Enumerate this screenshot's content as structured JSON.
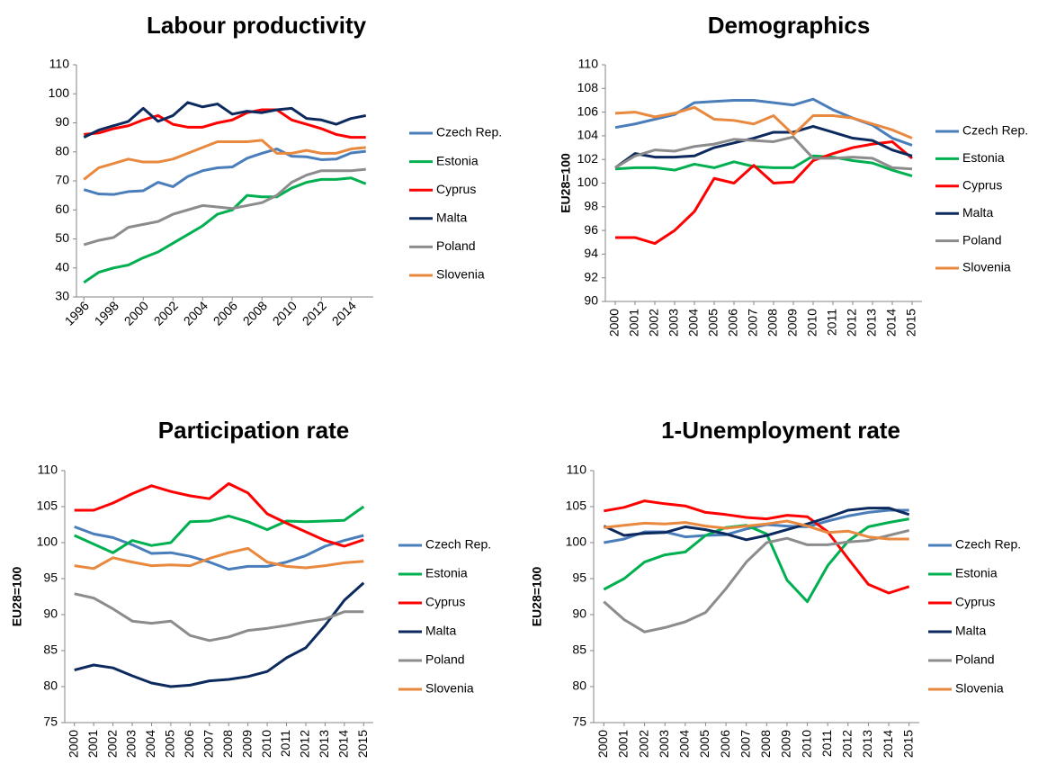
{
  "chart_data": [
    {
      "type": "line",
      "title": "Labour productivity",
      "x": [
        1996,
        1997,
        1998,
        1999,
        2000,
        2001,
        2002,
        2003,
        2004,
        2005,
        2006,
        2007,
        2008,
        2009,
        2010,
        2011,
        2012,
        2013,
        2014,
        2015
      ],
      "xlim": [
        1995.5,
        2015.5
      ],
      "xticks": [
        1996,
        1998,
        2000,
        2002,
        2004,
        2006,
        2008,
        2010,
        2012,
        2014
      ],
      "ylim": [
        30,
        110
      ],
      "yticks": [
        30,
        40,
        50,
        60,
        70,
        80,
        90,
        100,
        110
      ],
      "legend": "right",
      "series": [
        {
          "name": "Czech Rep.",
          "color": "#4a7ebb",
          "values": [
            67,
            65.5,
            65.3,
            66.3,
            66.6,
            69.5,
            68,
            71.5,
            73.5,
            74.5,
            74.8,
            77.8,
            79.5,
            81,
            78.5,
            78.3,
            77.3,
            77.5,
            79.6,
            80.2
          ]
        },
        {
          "name": "Estonia",
          "color": "#00b050",
          "values": [
            35,
            38.5,
            40,
            41,
            43.5,
            45.5,
            48.5,
            51.5,
            54.5,
            58.5,
            60,
            65,
            64.5,
            64.5,
            67.5,
            69.5,
            70.5,
            70.5,
            71,
            69
          ]
        },
        {
          "name": "Cyprus",
          "color": "#ff0000",
          "values": [
            86,
            86.5,
            88,
            89,
            91,
            92.5,
            89.5,
            88.5,
            88.5,
            90,
            91,
            93.5,
            94.5,
            94.5,
            91,
            89.5,
            88,
            86,
            85,
            85
          ]
        },
        {
          "name": "Malta",
          "color": "#0d2a5e",
          "values": [
            85,
            87.5,
            89,
            90.5,
            95,
            90.5,
            92.5,
            97,
            95.5,
            96.5,
            93,
            94,
            93.5,
            94.5,
            95,
            91.5,
            91,
            89.5,
            91.5,
            92.5
          ]
        },
        {
          "name": "Poland",
          "color": "#8c8c8c",
          "values": [
            48,
            49.5,
            50.5,
            54,
            55,
            56,
            58.5,
            60,
            61.5,
            61,
            60.5,
            61.5,
            62.5,
            65,
            69.5,
            72,
            73.5,
            73.5,
            73.5,
            74
          ]
        },
        {
          "name": "Slovenia",
          "color": "#e8893f",
          "values": [
            70.5,
            74.5,
            76,
            77.5,
            76.5,
            76.5,
            77.5,
            79.5,
            81.5,
            83.5,
            83.5,
            83.5,
            84,
            79.5,
            79.5,
            80.5,
            79.5,
            79.5,
            81,
            81.5
          ]
        }
      ]
    },
    {
      "type": "line",
      "title": "Demographics",
      "y_label": "EU28=100",
      "x": [
        2000,
        2001,
        2002,
        2003,
        2004,
        2005,
        2006,
        2007,
        2008,
        2009,
        2010,
        2011,
        2012,
        2013,
        2014,
        2015
      ],
      "xlim": [
        1999.5,
        2015.5
      ],
      "xticks": [
        2000,
        2001,
        2002,
        2003,
        2004,
        2005,
        2006,
        2007,
        2008,
        2009,
        2010,
        2011,
        2012,
        2013,
        2014,
        2015
      ],
      "ylim": [
        90,
        110
      ],
      "yticks": [
        90,
        92,
        94,
        96,
        98,
        100,
        102,
        104,
        106,
        108,
        110
      ],
      "legend": "right",
      "series": [
        {
          "name": "Czech Rep.",
          "color": "#4a7ebb",
          "values": [
            104.7,
            105,
            105.4,
            105.8,
            106.8,
            106.9,
            107,
            107,
            106.8,
            106.6,
            107.1,
            106.2,
            105.5,
            104.9,
            103.8,
            103.2
          ]
        },
        {
          "name": "Estonia",
          "color": "#00b050",
          "values": [
            101.2,
            101.3,
            101.3,
            101.1,
            101.6,
            101.3,
            101.8,
            101.4,
            101.3,
            101.3,
            102.3,
            102.2,
            101.9,
            101.7,
            101.1,
            100.6
          ]
        },
        {
          "name": "Cyprus",
          "color": "#ff0000",
          "values": [
            95.4,
            95.4,
            94.9,
            96,
            97.6,
            100.4,
            100,
            101.5,
            100,
            100.1,
            101.9,
            102.5,
            103,
            103.3,
            103.5,
            102.1
          ]
        },
        {
          "name": "Malta",
          "color": "#0d2a5e",
          "values": [
            101.3,
            102.5,
            102.2,
            102.2,
            102.3,
            103,
            103.4,
            103.8,
            104.3,
            104.3,
            104.8,
            104.3,
            103.8,
            103.6,
            102.8,
            102.3
          ]
        },
        {
          "name": "Poland",
          "color": "#8c8c8c",
          "values": [
            101.3,
            102.3,
            102.8,
            102.7,
            103.1,
            103.3,
            103.7,
            103.6,
            103.5,
            103.9,
            102.1,
            102.1,
            102.2,
            102.1,
            101.3,
            101.2
          ]
        },
        {
          "name": "Slovenia",
          "color": "#e8893f",
          "values": [
            105.9,
            106,
            105.6,
            105.9,
            106.4,
            105.4,
            105.3,
            105,
            105.7,
            104.1,
            105.7,
            105.7,
            105.5,
            105,
            104.5,
            103.8
          ]
        }
      ]
    },
    {
      "type": "line",
      "title": "Participation rate",
      "y_label": "EU28=100",
      "x": [
        2000,
        2001,
        2002,
        2003,
        2004,
        2005,
        2006,
        2007,
        2008,
        2009,
        2010,
        2011,
        2012,
        2013,
        2014,
        2015
      ],
      "xlim": [
        1999.5,
        2015.5
      ],
      "xticks": [
        2000,
        2001,
        2002,
        2003,
        2004,
        2005,
        2006,
        2007,
        2008,
        2009,
        2010,
        2011,
        2012,
        2013,
        2014,
        2015
      ],
      "ylim": [
        75,
        110
      ],
      "yticks": [
        75,
        80,
        85,
        90,
        95,
        100,
        105,
        110
      ],
      "legend": "right",
      "series": [
        {
          "name": "Czech Rep.",
          "color": "#4a7ebb",
          "values": [
            102.2,
            101.2,
            100.7,
            99.7,
            98.5,
            98.6,
            98.1,
            97.3,
            96.3,
            96.7,
            96.7,
            97.3,
            98.2,
            99.5,
            100.3,
            101
          ]
        },
        {
          "name": "Estonia",
          "color": "#00b050",
          "values": [
            101,
            99.8,
            98.6,
            100.3,
            99.6,
            100,
            102.9,
            103,
            103.7,
            102.9,
            101.8,
            103,
            102.9,
            103,
            103.1,
            105
          ]
        },
        {
          "name": "Cyprus",
          "color": "#ff0000",
          "values": [
            104.5,
            104.5,
            105.5,
            106.8,
            107.9,
            107.1,
            106.5,
            106.1,
            108.2,
            106.9,
            104,
            102.7,
            101.5,
            100.3,
            99.5,
            100.4
          ]
        },
        {
          "name": "Malta",
          "color": "#0d2a5e",
          "values": [
            82.3,
            83,
            82.6,
            81.5,
            80.5,
            80,
            80.2,
            80.8,
            81,
            81.4,
            82.1,
            84,
            85.4,
            88.5,
            92,
            94.4
          ]
        },
        {
          "name": "Poland",
          "color": "#8c8c8c",
          "values": [
            92.9,
            92.3,
            90.8,
            89.1,
            88.8,
            89.1,
            87.1,
            86.4,
            86.9,
            87.8,
            88.1,
            88.5,
            89,
            89.4,
            90.4,
            90.4
          ]
        },
        {
          "name": "Slovenia",
          "color": "#e8893f",
          "values": [
            96.8,
            96.4,
            97.9,
            97.3,
            96.8,
            96.9,
            96.8,
            97.8,
            98.6,
            99.2,
            97.3,
            96.7,
            96.5,
            96.8,
            97.2,
            97.4
          ]
        }
      ]
    },
    {
      "type": "line",
      "title": "1-Unemployment rate",
      "y_label": "EU28=100",
      "x": [
        2000,
        2001,
        2002,
        2003,
        2004,
        2005,
        2006,
        2007,
        2008,
        2009,
        2010,
        2011,
        2012,
        2013,
        2014,
        2015
      ],
      "xlim": [
        1999.5,
        2015.5
      ],
      "xticks": [
        2000,
        2001,
        2002,
        2003,
        2004,
        2005,
        2006,
        2007,
        2008,
        2009,
        2010,
        2011,
        2012,
        2013,
        2014,
        2015
      ],
      "ylim": [
        75,
        110
      ],
      "yticks": [
        75,
        80,
        85,
        90,
        95,
        100,
        105,
        110
      ],
      "legend": "right",
      "series": [
        {
          "name": "Czech Rep.",
          "color": "#4a7ebb",
          "values": [
            100,
            100.5,
            101.5,
            101.5,
            100.8,
            101,
            101.1,
            101.9,
            102.5,
            102.3,
            102.2,
            103,
            103.7,
            104.2,
            104.5,
            104.5
          ]
        },
        {
          "name": "Estonia",
          "color": "#00b050",
          "values": [
            93.5,
            95,
            97.3,
            98.3,
            98.7,
            101,
            102.1,
            102.4,
            101.2,
            94.8,
            91.8,
            96.8,
            100.2,
            102.2,
            102.8,
            103.3
          ]
        },
        {
          "name": "Cyprus",
          "color": "#ff0000",
          "values": [
            104.4,
            104.9,
            105.8,
            105.4,
            105.1,
            104.2,
            103.9,
            103.5,
            103.3,
            103.8,
            103.6,
            101.5,
            97.8,
            94.2,
            93,
            93.9
          ]
        },
        {
          "name": "Malta",
          "color": "#0d2a5e",
          "values": [
            102.3,
            101,
            101.3,
            101.4,
            102.2,
            101.8,
            101.2,
            100.4,
            101,
            101.8,
            102.6,
            103.5,
            104.5,
            104.8,
            104.8,
            103.9
          ]
        },
        {
          "name": "Poland",
          "color": "#8c8c8c",
          "values": [
            91.8,
            89.3,
            87.6,
            88.2,
            89,
            90.3,
            93.6,
            97.3,
            100,
            100.6,
            99.7,
            99.7,
            100.1,
            100.3,
            101,
            101.7
          ]
        },
        {
          "name": "Slovenia",
          "color": "#e8893f",
          "values": [
            102.1,
            102.4,
            102.7,
            102.6,
            102.8,
            102.3,
            102,
            102.3,
            102.6,
            103,
            102.3,
            101.4,
            101.6,
            100.8,
            100.5,
            100.5
          ]
        }
      ]
    }
  ]
}
